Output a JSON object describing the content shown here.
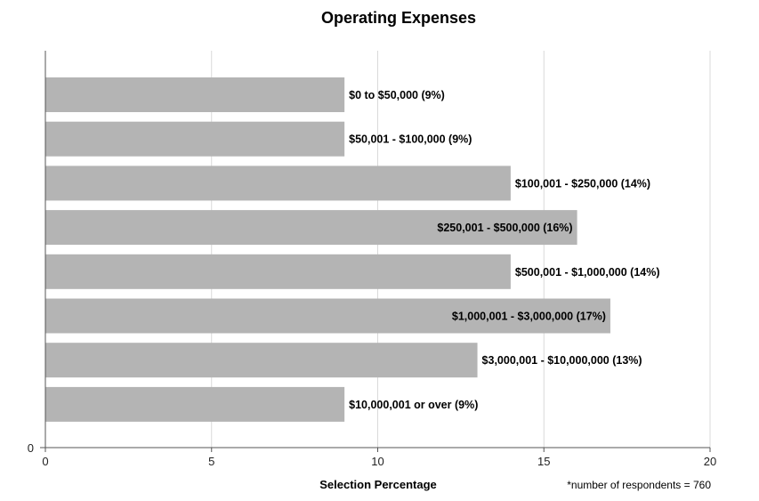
{
  "chart_data": {
    "type": "bar",
    "orientation": "horizontal",
    "title": "Operating Expenses",
    "xlabel": "Selection Percentage",
    "ylabel": "",
    "xlim": [
      0,
      20
    ],
    "x_ticks": [
      "0",
      "5",
      "10",
      "15",
      "20"
    ],
    "y_ticks": [
      "0"
    ],
    "grid": "vertical",
    "bar_color": "#b4b4b4",
    "categories": [
      "$0 to $50,000 (9%)",
      "$50,001 - $100,000 (9%)",
      "$100,001 - $250,000 (14%)",
      "$250,001 - $500,000 (16%)",
      "$500,001 - $1,000,000 (14%)",
      "$1,000,001 - $3,000,000 (17%)",
      "$3,000,001 - $10,000,000 (13%)",
      "$10,000,001 or over (9%)"
    ],
    "values": [
      9,
      9,
      14,
      16,
      14,
      17,
      13,
      9
    ],
    "label_inside": [
      false,
      false,
      false,
      true,
      false,
      true,
      false,
      false
    ],
    "footnote": "*number of respondents = 760"
  }
}
